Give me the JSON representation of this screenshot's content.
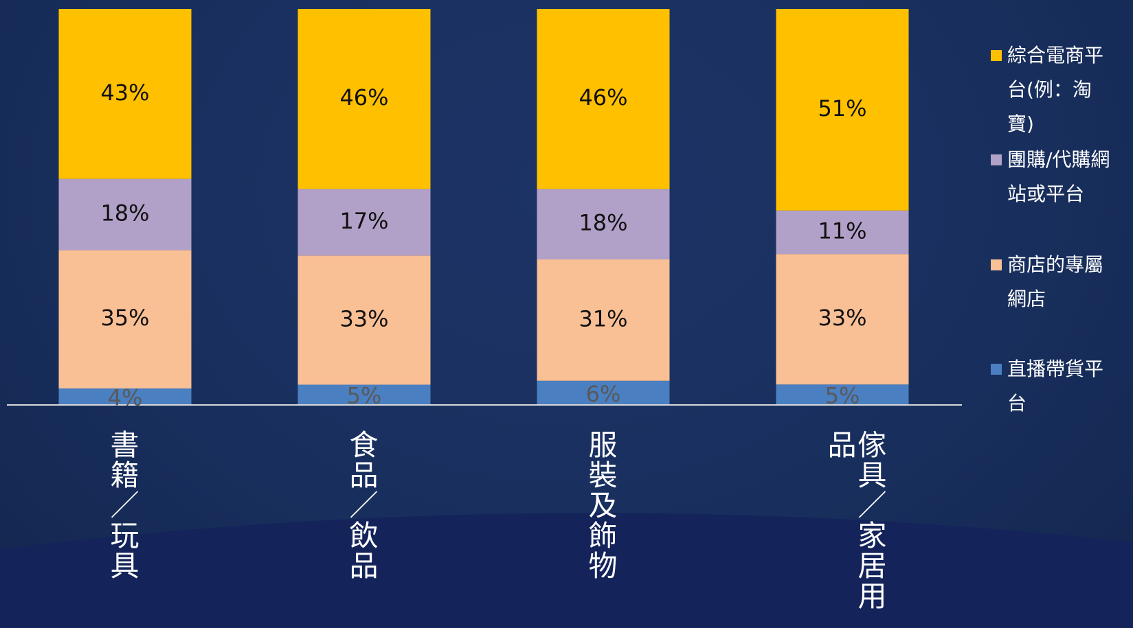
{
  "chart_data": {
    "type": "stacked_bar",
    "categories": [
      "書籍／玩具",
      "食品／飲品",
      "服裝及飾物",
      "傢具／家居用品"
    ],
    "series": [
      {
        "name": "直播帶貨平台",
        "color": "#4a7fc1",
        "values": [
          4,
          5,
          6,
          5
        ],
        "value_labels": [
          "4%",
          "5%",
          "6%",
          "5%"
        ]
      },
      {
        "name": "商店的專屬網店",
        "color": "#f9bf95",
        "values": [
          35,
          33,
          31,
          33
        ],
        "value_labels": [
          "35%",
          "33%",
          "31%",
          "33%"
        ]
      },
      {
        "name": "團購/代購網站或平台",
        "color": "#b1a0c7",
        "values": [
          18,
          17,
          18,
          11
        ],
        "value_labels": [
          "18%",
          "17%",
          "18%",
          "11%"
        ]
      },
      {
        "name": "綜合電商平台(例：淘寶)",
        "color": "#ffc000",
        "values": [
          43,
          46,
          46,
          51
        ],
        "value_labels": [
          "43%",
          "46%",
          "46%",
          "51%"
        ]
      }
    ]
  }
}
